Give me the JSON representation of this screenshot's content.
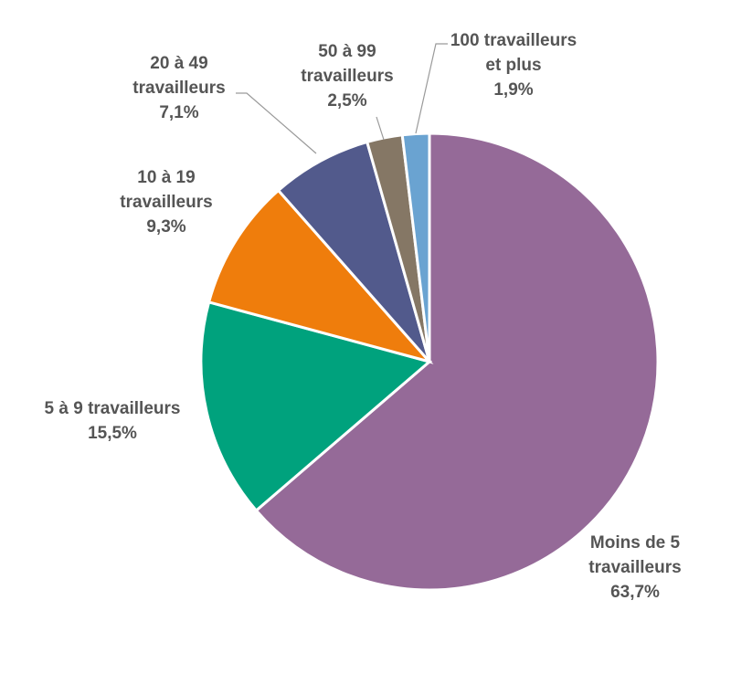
{
  "chart_data": {
    "type": "pie",
    "title": "",
    "slices": [
      {
        "name": "Moins de 5 travailleurs",
        "lines": [
          "Moins de 5",
          "travailleurs",
          "63,7%"
        ],
        "value": 63.7,
        "color": "#956a98"
      },
      {
        "name": "5 à 9 travailleurs",
        "lines": [
          "5 à 9 travailleurs",
          "15,5%"
        ],
        "value": 15.5,
        "color": "#00a27d"
      },
      {
        "name": "10 à 19 travailleurs",
        "lines": [
          "10 à 19",
          "travailleurs",
          "9,3%"
        ],
        "value": 9.3,
        "color": "#ef7d0c"
      },
      {
        "name": "20 à 49 travailleurs",
        "lines": [
          "20 à 49",
          "travailleurs",
          "7,1%"
        ],
        "value": 7.1,
        "color": "#525a8c"
      },
      {
        "name": "50 à 99 travailleurs",
        "lines": [
          "50 à 99",
          "travailleurs",
          "2,5%"
        ],
        "value": 2.5,
        "color": "#857765"
      },
      {
        "name": "100 travailleurs et plus",
        "lines": [
          "100 travailleurs",
          "et plus",
          "1,9%"
        ],
        "value": 1.9,
        "color": "#6aa3d1"
      }
    ]
  }
}
